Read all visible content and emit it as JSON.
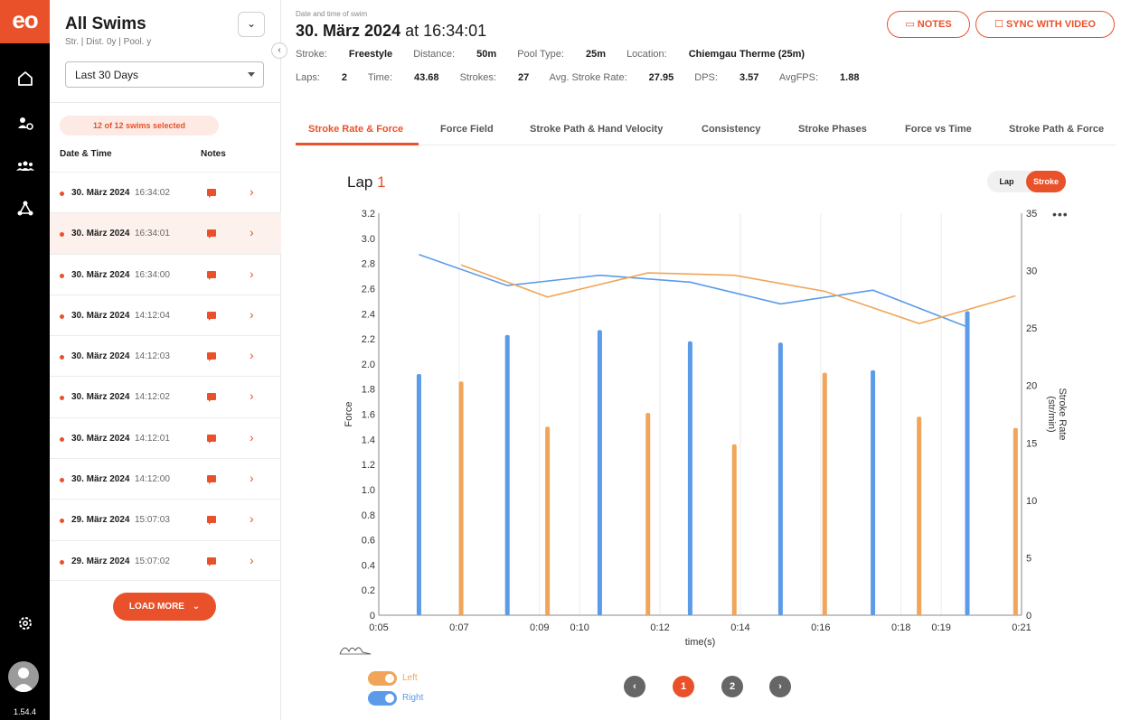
{
  "app": {
    "logo": "eo",
    "version": "1.54.4"
  },
  "nav": {
    "icons": [
      "home-icon",
      "team-settings-icon",
      "group-icon",
      "network-icon",
      "settings-icon"
    ]
  },
  "panel": {
    "title": "All Swims",
    "subtitle": "Str. | Dist. 0y | Pool. y",
    "toggle_label": "⌄",
    "collapse_label": "‹",
    "range": "Last  30 Days",
    "selected_label": "12 of 12 swims selected",
    "col_date": "Date & Time",
    "col_notes": "Notes",
    "load_more": "LOAD MORE",
    "rows": [
      {
        "date": "30. März 2024",
        "time": "16:34:02"
      },
      {
        "date": "30. März 2024",
        "time": "16:34:01"
      },
      {
        "date": "30. März 2024",
        "time": "16:34:00"
      },
      {
        "date": "30. März 2024",
        "time": "14:12:04"
      },
      {
        "date": "30. März 2024",
        "time": "14:12:03"
      },
      {
        "date": "30. März 2024",
        "time": "14:12:02"
      },
      {
        "date": "30. März 2024",
        "time": "14:12:01"
      },
      {
        "date": "30. März 2024",
        "time": "14:12:00"
      },
      {
        "date": "29. März 2024",
        "time": "15:07:03"
      },
      {
        "date": "29. März 2024",
        "time": "15:07:02"
      }
    ]
  },
  "header": {
    "kicker": "Date and time of swim",
    "date": "30. März 2024",
    "at": "at",
    "time": "16:34:01",
    "notes_btn": "NOTES",
    "sync_btn": "SYNC WITH VIDEO",
    "info1": [
      {
        "label": "Stroke:",
        "value": "Freestyle"
      },
      {
        "label": "Distance:",
        "value": "50m"
      },
      {
        "label": "Pool Type:",
        "value": "25m"
      },
      {
        "label": "Location:",
        "value": "Chiemgau Therme (25m)"
      }
    ],
    "info2": [
      {
        "label": "Laps:",
        "value": "2"
      },
      {
        "label": "Time:",
        "value": "43.68"
      },
      {
        "label": "Strokes:",
        "value": "27"
      },
      {
        "label": "Avg. Stroke Rate:",
        "value": "27.95"
      },
      {
        "label": "DPS:",
        "value": "3.57"
      },
      {
        "label": "AvgFPS:",
        "value": "1.88"
      }
    ]
  },
  "tabs": [
    "Stroke Rate & Force",
    "Force Field",
    "Stroke Path & Hand Velocity",
    "Consistency",
    "Stroke Phases",
    "Force vs Time",
    "Stroke Path & Force"
  ],
  "lap": {
    "label": "Lap",
    "number": "1"
  },
  "segment": {
    "left": "Lap",
    "right": "Stroke"
  },
  "more": "•••",
  "legend": {
    "left": "Left",
    "right": "Right"
  },
  "pager": {
    "prev": "‹",
    "pages": [
      "1",
      "2"
    ],
    "next": "›"
  },
  "colors": {
    "accent": "#e9512a",
    "right": "#5b9be8",
    "left": "#f0a55a"
  },
  "chart_data": {
    "type": "bar",
    "title": "",
    "xlabel": "time(s)",
    "ylabel": "Force",
    "y2label": "Stroke Rate (str/min)",
    "xlim": [
      5,
      21
    ],
    "ylim": [
      0,
      3.2
    ],
    "y2lim": [
      0,
      35
    ],
    "x_tick_values": [
      5,
      7,
      9,
      10,
      12,
      14,
      16,
      18,
      19,
      21
    ],
    "x_tick_labels": [
      "0:05",
      "0:07",
      "0:09",
      "0:10",
      "0:12",
      "0:14",
      "0:16",
      "0:18",
      "0:19",
      "0:21"
    ],
    "y_ticks": [
      "0",
      "0.2",
      "0.4",
      "0.6",
      "0.8",
      "1.0",
      "1.2",
      "1.4",
      "1.6",
      "1.8",
      "2.0",
      "2.2",
      "2.4",
      "2.6",
      "2.8",
      "3.0",
      "3.2"
    ],
    "y2_ticks": [
      "0",
      "5",
      "10",
      "15",
      "20",
      "25",
      "30",
      "35"
    ],
    "bars": [
      {
        "side": "right",
        "x": 6.0,
        "force": 1.92
      },
      {
        "side": "left",
        "x": 7.05,
        "force": 1.86
      },
      {
        "side": "right",
        "x": 8.2,
        "force": 2.23
      },
      {
        "side": "left",
        "x": 9.2,
        "force": 1.5
      },
      {
        "side": "right",
        "x": 10.5,
        "force": 2.27
      },
      {
        "side": "left",
        "x": 11.7,
        "force": 1.61
      },
      {
        "side": "right",
        "x": 12.75,
        "force": 2.18
      },
      {
        "side": "left",
        "x": 13.85,
        "force": 1.36
      },
      {
        "side": "right",
        "x": 15.0,
        "force": 2.17
      },
      {
        "side": "left",
        "x": 16.1,
        "force": 1.93
      },
      {
        "side": "right",
        "x": 17.3,
        "force": 1.95
      },
      {
        "side": "left",
        "x": 18.45,
        "force": 1.58
      },
      {
        "side": "right",
        "x": 19.65,
        "force": 2.42
      },
      {
        "side": "left",
        "x": 20.85,
        "force": 1.49
      }
    ],
    "series": [
      {
        "name": "Right stroke rate",
        "side": "right",
        "points": [
          [
            6.0,
            31.4
          ],
          [
            8.2,
            28.7
          ],
          [
            10.5,
            29.6
          ],
          [
            12.75,
            29.0
          ],
          [
            15.0,
            27.1
          ],
          [
            17.3,
            28.3
          ],
          [
            19.65,
            25.1
          ]
        ]
      },
      {
        "name": "Left stroke rate",
        "side": "left",
        "points": [
          [
            7.05,
            30.5
          ],
          [
            9.2,
            27.7
          ],
          [
            11.7,
            29.8
          ],
          [
            13.85,
            29.6
          ],
          [
            16.1,
            28.2
          ],
          [
            18.45,
            25.4
          ],
          [
            20.85,
            27.8
          ]
        ]
      }
    ]
  }
}
